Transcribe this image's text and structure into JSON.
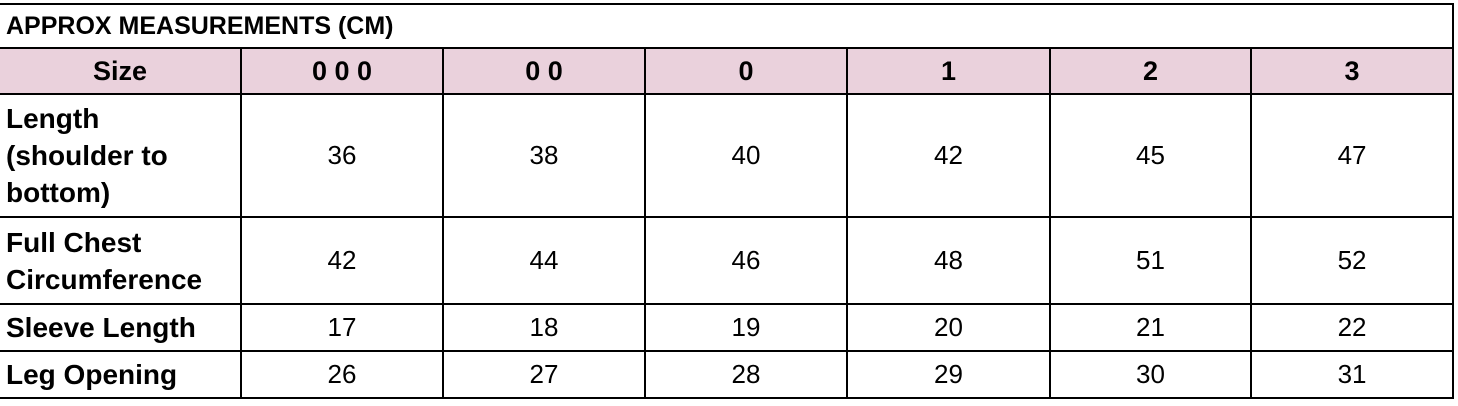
{
  "title": "APPROX MEASUREMENTS (CM)",
  "header": {
    "label": "Size",
    "sizes": [
      "0 0 0",
      "0 0",
      "0",
      "1",
      "2",
      "3"
    ]
  },
  "header_color": "#ead1dc",
  "rows": [
    {
      "label": "Length (shoulder to bottom)",
      "values": [
        "36",
        "38",
        "40",
        "42",
        "45",
        "47"
      ]
    },
    {
      "label": "Full Chest Circumference",
      "values": [
        "42",
        "44",
        "46",
        "48",
        "51",
        "52"
      ]
    },
    {
      "label": "Sleeve Length",
      "values": [
        "17",
        "18",
        "19",
        "20",
        "21",
        "22"
      ]
    },
    {
      "label": "Leg Opening",
      "values": [
        "26",
        "27",
        "28",
        "29",
        "30",
        "31"
      ]
    }
  ]
}
